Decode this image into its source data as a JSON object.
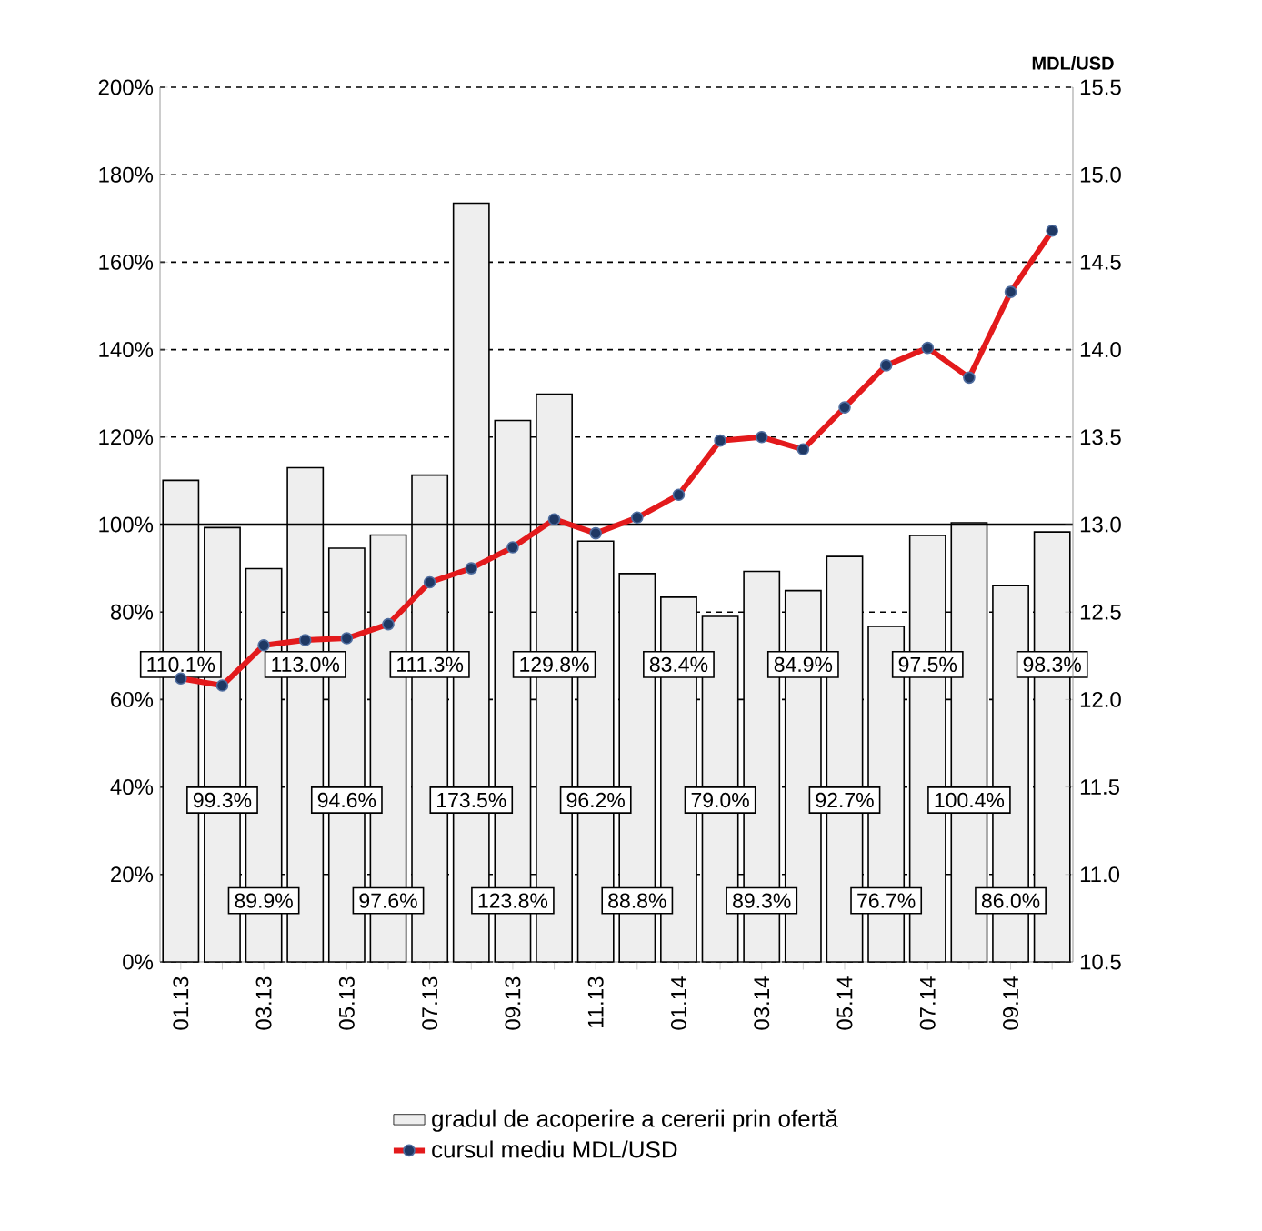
{
  "chart_data": {
    "type": "bar",
    "categories": [
      "01.13",
      null,
      "03.13",
      null,
      "05.13",
      null,
      "07.13",
      null,
      "09.13",
      null,
      "11.13",
      null,
      "01.14",
      null,
      "03.14",
      null,
      "05.14",
      null,
      "07.14",
      null,
      "09.14",
      null
    ],
    "series": [
      {
        "name": "gradul de acoperire a cererii prin ofertă",
        "color": "#eeeeee",
        "values": [
          110.1,
          99.3,
          89.9,
          113.0,
          94.6,
          97.6,
          111.3,
          173.5,
          123.8,
          129.8,
          96.2,
          88.8,
          83.4,
          79.0,
          89.3,
          84.9,
          92.7,
          76.7,
          97.5,
          100.4,
          86.0,
          98.3
        ],
        "value_labels": [
          "110.1%",
          "99.3%",
          "89.9%",
          "113.0%",
          "94.6%",
          "97.6%",
          "111.3%",
          "173.5%",
          "123.8%",
          "129.8%",
          "96.2%",
          "88.8%",
          "83.4%",
          "79.0%",
          "89.3%",
          "84.9%",
          "92.7%",
          "76.7%",
          "97.5%",
          "100.4%",
          "86.0%",
          "98.3%"
        ]
      },
      {
        "name": "cursul mediu MDL/USD",
        "type": "line",
        "axis": "y2",
        "color": "#e31a1c",
        "marker": "circle",
        "values": [
          12.12,
          12.08,
          12.31,
          12.34,
          12.35,
          12.43,
          12.67,
          12.75,
          12.87,
          13.03,
          12.95,
          13.04,
          13.17,
          13.48,
          13.5,
          13.43,
          13.67,
          13.91,
          14.01,
          13.84,
          14.33,
          14.68
        ]
      }
    ],
    "y2label": "MDL/USD",
    "ylim": [
      0,
      200
    ],
    "yticks": [
      {
        "value": 0,
        "label": "0%"
      },
      {
        "value": 20,
        "label": "20%"
      },
      {
        "value": 40,
        "label": "40%"
      },
      {
        "value": 60,
        "label": "60%"
      },
      {
        "value": 80,
        "label": "80%"
      },
      {
        "value": 100,
        "label": "100%"
      },
      {
        "value": 120,
        "label": "120%"
      },
      {
        "value": 140,
        "label": "140%"
      },
      {
        "value": 160,
        "label": "160%"
      },
      {
        "value": 180,
        "label": "180%"
      },
      {
        "value": 200,
        "label": "200%"
      }
    ],
    "y2lim": [
      10.5,
      15.5
    ],
    "y2ticks": [
      10.5,
      {
        "value": 11,
        "label": "11.0"
      },
      11.5,
      {
        "value": 12,
        "label": "12.0"
      },
      12.5,
      {
        "value": 13,
        "label": "13.0"
      },
      13.5,
      {
        "value": 14,
        "label": "14.0"
      },
      14.5,
      {
        "value": 15,
        "label": "15.0"
      },
      15.5
    ],
    "ref_lines": [
      {
        "axis": "y",
        "value": 100,
        "color": "#000000",
        "line_style": "solid"
      }
    ],
    "grid": "y",
    "legend": "bottom"
  }
}
